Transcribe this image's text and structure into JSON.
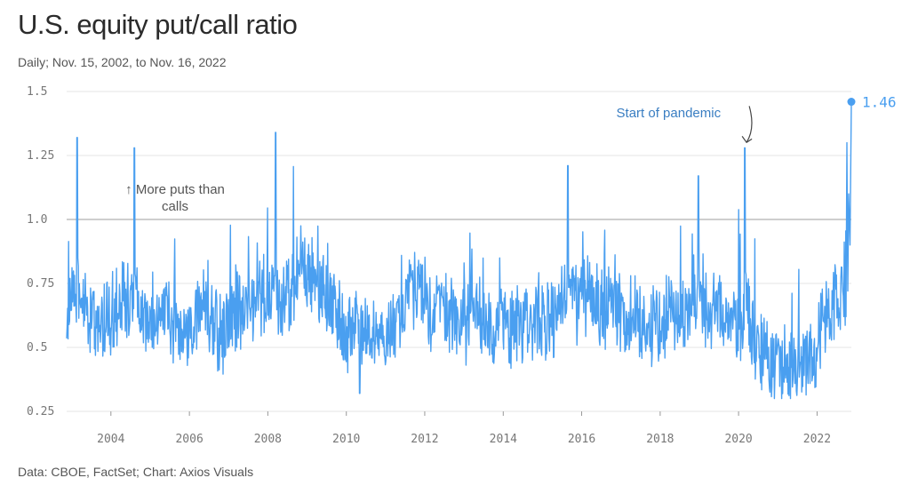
{
  "title": "U.S. equity put/call ratio",
  "subtitle": "Daily; Nov. 15, 2002, to Nov. 16, 2022",
  "source": "Data: CBOE, FactSet; Chart: Axios Visuals",
  "colors": {
    "line": "#4a9ff0",
    "grid": "#e6e6e6",
    "reference": "#bdbdbd",
    "annotation_blue": "#3a7ec2"
  },
  "chart_data": {
    "type": "line",
    "title": "U.S. equity put/call ratio",
    "subtitle": "Daily; Nov. 15, 2002, to Nov. 16, 2022",
    "xlabel": "",
    "ylabel": "",
    "x_range": [
      "2002-11-15",
      "2022-11-16"
    ],
    "ylim": [
      0.25,
      1.5
    ],
    "yticks": [
      0.25,
      0.5,
      0.75,
      1.0,
      1.25,
      1.5
    ],
    "ytick_labels": [
      "0.25",
      "0.5",
      "0.75",
      "1.0",
      "1.25",
      "1.5"
    ],
    "xticks": [
      2004,
      2006,
      2008,
      2010,
      2012,
      2014,
      2016,
      2018,
      2020,
      2022
    ],
    "xtick_labels": [
      "2004",
      "2006",
      "2008",
      "2010",
      "2012",
      "2014",
      "2016",
      "2018",
      "2020",
      "2022"
    ],
    "reference_line": 1.0,
    "grid": true,
    "series": [
      {
        "dates": [
          "2002-11-15",
          "2003-01-15",
          "2003-03-15",
          "2003-05-15",
          "2003-07-15",
          "2003-09-15",
          "2003-11-15",
          "2004-01-15",
          "2004-03-15",
          "2004-05-15",
          "2004-07-15",
          "2004-09-15",
          "2004-11-15",
          "2005-01-15",
          "2005-03-15",
          "2005-05-15",
          "2005-07-15",
          "2005-09-15",
          "2005-11-15",
          "2006-01-15",
          "2006-03-15",
          "2006-05-15",
          "2006-07-15",
          "2006-09-15",
          "2006-11-15",
          "2007-01-15",
          "2007-03-15",
          "2007-05-15",
          "2007-07-15",
          "2007-09-15",
          "2007-11-15",
          "2008-01-15",
          "2008-03-15",
          "2008-05-15",
          "2008-07-15",
          "2008-09-15",
          "2008-11-15",
          "2009-01-15",
          "2009-03-15",
          "2009-05-15",
          "2009-07-15",
          "2009-09-15",
          "2009-11-15",
          "2010-01-15",
          "2010-03-15",
          "2010-05-15",
          "2010-07-15",
          "2010-09-15",
          "2010-11-15",
          "2011-01-15",
          "2011-03-15",
          "2011-05-15",
          "2011-07-15",
          "2011-09-15",
          "2011-11-15",
          "2012-01-15",
          "2012-03-15",
          "2012-05-15",
          "2012-07-15",
          "2012-09-15",
          "2012-11-15",
          "2013-01-15",
          "2013-03-15",
          "2013-05-15",
          "2013-07-15",
          "2013-09-15",
          "2013-11-15",
          "2014-01-15",
          "2014-03-15",
          "2014-05-15",
          "2014-07-15",
          "2014-09-15",
          "2014-11-15",
          "2015-01-15",
          "2015-03-15",
          "2015-05-15",
          "2015-07-15",
          "2015-09-15",
          "2015-11-15",
          "2016-01-15",
          "2016-03-15",
          "2016-05-15",
          "2016-07-15",
          "2016-09-15",
          "2016-11-15",
          "2017-01-15",
          "2017-03-15",
          "2017-05-15",
          "2017-07-15",
          "2017-09-15",
          "2017-11-15",
          "2018-01-15",
          "2018-03-15",
          "2018-05-15",
          "2018-07-15",
          "2018-09-15",
          "2018-11-15",
          "2019-01-15",
          "2019-03-15",
          "2019-05-15",
          "2019-07-15",
          "2019-09-15",
          "2019-11-15",
          "2020-01-15",
          "2020-03-15",
          "2020-05-15",
          "2020-07-15",
          "2020-09-15",
          "2020-11-15",
          "2021-01-15",
          "2021-03-15",
          "2021-05-15",
          "2021-07-15",
          "2021-09-15",
          "2021-11-15",
          "2022-01-15",
          "2022-03-15",
          "2022-05-15",
          "2022-07-15",
          "2022-09-15",
          "2022-11-16"
        ],
        "values": [
          0.62,
          0.68,
          0.72,
          0.66,
          0.6,
          0.58,
          0.62,
          0.63,
          0.66,
          0.7,
          0.68,
          0.65,
          0.6,
          0.62,
          0.64,
          0.66,
          0.6,
          0.58,
          0.56,
          0.6,
          0.62,
          0.65,
          0.62,
          0.58,
          0.56,
          0.6,
          0.66,
          0.62,
          0.66,
          0.7,
          0.68,
          0.72,
          0.74,
          0.66,
          0.7,
          0.76,
          0.82,
          0.8,
          0.76,
          0.72,
          0.68,
          0.65,
          0.6,
          0.58,
          0.6,
          0.62,
          0.56,
          0.52,
          0.5,
          0.54,
          0.6,
          0.62,
          0.66,
          0.72,
          0.7,
          0.66,
          0.64,
          0.7,
          0.68,
          0.64,
          0.62,
          0.6,
          0.62,
          0.64,
          0.6,
          0.58,
          0.6,
          0.62,
          0.58,
          0.6,
          0.56,
          0.58,
          0.62,
          0.64,
          0.6,
          0.62,
          0.66,
          0.72,
          0.7,
          0.78,
          0.72,
          0.7,
          0.66,
          0.68,
          0.66,
          0.64,
          0.62,
          0.62,
          0.6,
          0.58,
          0.6,
          0.58,
          0.64,
          0.62,
          0.6,
          0.62,
          0.7,
          0.68,
          0.62,
          0.66,
          0.64,
          0.6,
          0.6,
          0.58,
          0.66,
          0.56,
          0.48,
          0.46,
          0.45,
          0.43,
          0.45,
          0.46,
          0.48,
          0.47,
          0.45,
          0.52,
          0.6,
          0.62,
          0.66,
          0.7,
          1.46
        ]
      }
    ],
    "peaks": [
      {
        "date": "2003-02-20",
        "value": 1.32
      },
      {
        "date": "2004-08-06",
        "value": 1.28
      },
      {
        "date": "2008-03-14",
        "value": 1.34
      },
      {
        "date": "2010-05-07",
        "value": 0.32
      },
      {
        "date": "2015-08-24",
        "value": 1.21
      },
      {
        "date": "2018-12-24",
        "value": 1.17
      },
      {
        "date": "2020-02-28",
        "value": 1.28
      },
      {
        "date": "2022-11-16",
        "value": 1.46
      }
    ],
    "annotations": [
      {
        "text": "Start of pandemic",
        "date": "2020-02-28",
        "value": 1.28
      },
      {
        "text": "↑ More puts than",
        "text_line2": "calls",
        "value": 1.0
      },
      {
        "text": "1.46",
        "date": "2022-11-16",
        "value": 1.46
      }
    ]
  },
  "annotations": {
    "puts_line1": "↑ More puts than",
    "puts_line2": "calls",
    "pandemic": "Start of pandemic",
    "last_value": "1.46"
  }
}
